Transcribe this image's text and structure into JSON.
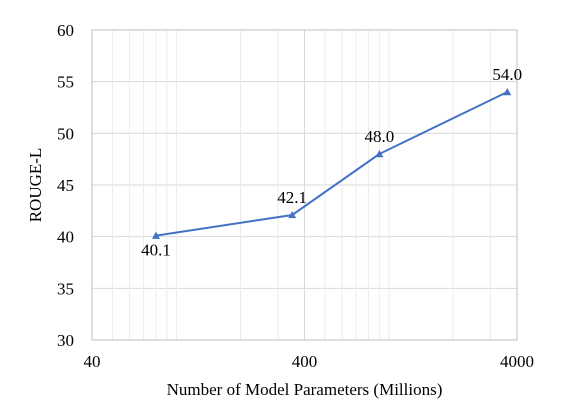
{
  "chart_data": {
    "type": "line",
    "xscale": "log",
    "x": [
      80,
      350,
      900,
      3600
    ],
    "series": [
      {
        "values": [
          40.1,
          42.1,
          48.0,
          54.0
        ],
        "color": "#4472c4",
        "marker": "triangle"
      }
    ],
    "data_labels": [
      "40.1",
      "42.1",
      "48.0",
      "54.0"
    ],
    "xlabel": "Number of Model Parameters (Millions)",
    "ylabel": "ROUGE-L",
    "xlim": [
      40,
      4000
    ],
    "ylim": [
      30,
      60
    ],
    "xticks": [
      40,
      400,
      4000
    ],
    "xtick_labels": [
      "40",
      "400",
      "4000"
    ],
    "yticks": [
      30,
      35,
      40,
      45,
      50,
      55,
      60
    ],
    "ytick_labels": [
      "30",
      "35",
      "40",
      "45",
      "50",
      "55",
      "60"
    ],
    "grid": true,
    "legend": "none"
  }
}
